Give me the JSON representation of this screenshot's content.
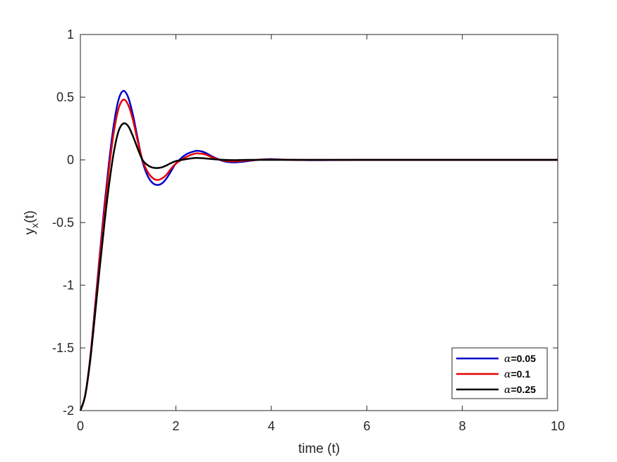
{
  "chart_data": {
    "type": "line",
    "xlabel": "time (t)",
    "ylabel_main": "y",
    "ylabel_sub": "x",
    "ylabel_suffix": "(t)",
    "xlim": [
      0,
      10
    ],
    "ylim": [
      -2,
      1
    ],
    "xticks": [
      0,
      2,
      4,
      6,
      8,
      10
    ],
    "yticks": [
      -2,
      -1.5,
      -1,
      -0.5,
      0,
      0.5,
      1
    ],
    "xtick_labels": [
      "0",
      "2",
      "4",
      "6",
      "8",
      "10"
    ],
    "ytick_labels": [
      "-2",
      "-1.5",
      "-1",
      "-0.5",
      "0",
      "0.5",
      "1"
    ],
    "grid": false,
    "legend_position": "bottom-right",
    "legend_symbol": "α",
    "series": [
      {
        "name": "=0.05",
        "color": "#0000cc",
        "x": [
          0,
          0.1,
          0.2,
          0.3,
          0.4,
          0.5,
          0.6,
          0.7,
          0.8,
          0.9,
          1.0,
          1.1,
          1.2,
          1.3,
          1.4,
          1.5,
          1.6,
          1.7,
          1.8,
          1.9,
          2.0,
          2.2,
          2.4,
          2.5,
          2.6,
          2.8,
          3.0,
          3.2,
          3.4,
          3.6,
          3.8,
          4.0,
          4.2,
          4.5,
          5,
          6,
          7,
          8,
          9,
          10
        ],
        "y": [
          -2.0,
          -1.88,
          -1.6,
          -1.2,
          -0.78,
          -0.38,
          -0.02,
          0.28,
          0.48,
          0.55,
          0.5,
          0.36,
          0.17,
          -0.01,
          -0.12,
          -0.18,
          -0.2,
          -0.19,
          -0.15,
          -0.09,
          -0.03,
          0.04,
          0.07,
          0.07,
          0.06,
          0.02,
          -0.01,
          -0.02,
          -0.015,
          -0.005,
          0.003,
          0.006,
          0.003,
          0.0,
          -0.002,
          0,
          0,
          0,
          0,
          0
        ]
      },
      {
        "name": "=0.1",
        "color": "#e60000",
        "x": [
          0,
          0.1,
          0.2,
          0.3,
          0.4,
          0.5,
          0.6,
          0.7,
          0.8,
          0.9,
          1.0,
          1.1,
          1.2,
          1.3,
          1.4,
          1.5,
          1.6,
          1.7,
          1.8,
          1.9,
          2.0,
          2.2,
          2.4,
          2.5,
          2.6,
          2.8,
          3.0,
          3.2,
          3.4,
          3.6,
          3.8,
          4.0,
          4.5,
          5,
          6,
          7,
          8,
          9,
          10
        ],
        "y": [
          -2.0,
          -1.88,
          -1.6,
          -1.22,
          -0.8,
          -0.42,
          -0.07,
          0.22,
          0.41,
          0.48,
          0.44,
          0.32,
          0.15,
          0.0,
          -0.09,
          -0.14,
          -0.16,
          -0.15,
          -0.12,
          -0.07,
          -0.03,
          0.02,
          0.05,
          0.05,
          0.045,
          0.015,
          -0.005,
          -0.012,
          -0.008,
          -0.002,
          0.002,
          0.003,
          0.0,
          0,
          0,
          0,
          0,
          0,
          0
        ]
      },
      {
        "name": "=0.25",
        "color": "#000000",
        "x": [
          0,
          0.1,
          0.2,
          0.3,
          0.4,
          0.5,
          0.6,
          0.7,
          0.8,
          0.9,
          1.0,
          1.1,
          1.2,
          1.3,
          1.4,
          1.5,
          1.6,
          1.7,
          1.8,
          1.9,
          2.0,
          2.2,
          2.4,
          2.6,
          2.8,
          3.0,
          3.2,
          3.5,
          4,
          5,
          6,
          7,
          8,
          9,
          10
        ],
        "y": [
          -2.0,
          -1.88,
          -1.62,
          -1.26,
          -0.88,
          -0.52,
          -0.2,
          0.06,
          0.23,
          0.29,
          0.27,
          0.19,
          0.09,
          0.0,
          -0.04,
          -0.06,
          -0.065,
          -0.06,
          -0.045,
          -0.025,
          -0.01,
          0.005,
          0.015,
          0.012,
          0.005,
          0.0,
          -0.002,
          0.0,
          0,
          0,
          0,
          0,
          0,
          0,
          0
        ]
      }
    ]
  }
}
